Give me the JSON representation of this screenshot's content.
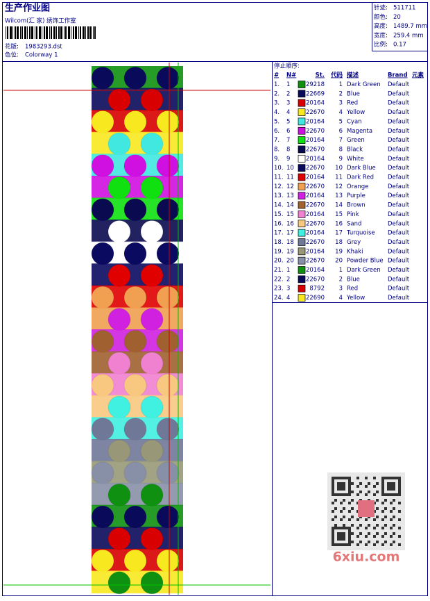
{
  "header": {
    "title": "生产作业图",
    "company": "Wilcom(汇 家) 绣饰工作室",
    "fields": [
      {
        "label": "花版:",
        "value": "1983293.dst"
      },
      {
        "label": "色位:",
        "value": "Colorway 1"
      }
    ]
  },
  "summary": [
    {
      "label": "针迹:",
      "value": "511711"
    },
    {
      "label": "颜色:",
      "value": "20"
    },
    {
      "label": "高度:",
      "value": "1489.7 mm"
    },
    {
      "label": "宽度:",
      "value": "259.4 mm"
    },
    {
      "label": "比例:",
      "value": "0.17"
    }
  ],
  "stop_sequence": {
    "title": "停止顺序:",
    "columns": [
      "#",
      "N#",
      "St.",
      "代码",
      "描述",
      "Brand",
      "元素"
    ],
    "rows": [
      {
        "num": "1.",
        "n": 1,
        "color": "#109010",
        "stitches": 29218,
        "code": 1,
        "desc": "Dark Green",
        "brand": "Default"
      },
      {
        "num": "2.",
        "n": 2,
        "color": "#0a0a5a",
        "stitches": 22669,
        "code": 2,
        "desc": "Blue",
        "brand": "Default"
      },
      {
        "num": "3.",
        "n": 3,
        "color": "#d80000",
        "stitches": 20164,
        "code": 3,
        "desc": "Red",
        "brand": "Default"
      },
      {
        "num": "4.",
        "n": 4,
        "color": "#f8e820",
        "stitches": 22670,
        "code": 4,
        "desc": "Yellow",
        "brand": "Default"
      },
      {
        "num": "5.",
        "n": 5,
        "color": "#40e8e0",
        "stitches": 20164,
        "code": 5,
        "desc": "Cyan",
        "brand": "Default"
      },
      {
        "num": "6.",
        "n": 6,
        "color": "#d010e0",
        "stitches": 22670,
        "code": 6,
        "desc": "Magenta",
        "brand": "Default"
      },
      {
        "num": "7.",
        "n": 7,
        "color": "#10e010",
        "stitches": 20164,
        "code": 7,
        "desc": "Green",
        "brand": "Default"
      },
      {
        "num": "8.",
        "n": 8,
        "color": "#0a0a50",
        "stitches": 22670,
        "code": 8,
        "desc": "Black",
        "brand": "Default"
      },
      {
        "num": "9.",
        "n": 9,
        "color": "#ffffff",
        "stitches": 20164,
        "code": 9,
        "desc": "White",
        "brand": "Default"
      },
      {
        "num": "10.",
        "n": 10,
        "color": "#0a0a60",
        "stitches": 22670,
        "code": 10,
        "desc": "Dark Blue",
        "brand": "Default"
      },
      {
        "num": "11.",
        "n": 11,
        "color": "#e00000",
        "stitches": 20164,
        "code": 11,
        "desc": "Dark Red",
        "brand": "Default"
      },
      {
        "num": "12.",
        "n": 12,
        "color": "#f0a050",
        "stitches": 22670,
        "code": 12,
        "desc": "Orange",
        "brand": "Default"
      },
      {
        "num": "13.",
        "n": 13,
        "color": "#d020e0",
        "stitches": 20164,
        "code": 13,
        "desc": "Purple",
        "brand": "Default"
      },
      {
        "num": "14.",
        "n": 14,
        "color": "#a06030",
        "stitches": 22670,
        "code": 14,
        "desc": "Brown",
        "brand": "Default"
      },
      {
        "num": "15.",
        "n": 15,
        "color": "#f080d0",
        "stitches": 20164,
        "code": 15,
        "desc": "Pink",
        "brand": "Default"
      },
      {
        "num": "16.",
        "n": 16,
        "color": "#f8c880",
        "stitches": 22670,
        "code": 16,
        "desc": "Sand",
        "brand": "Default"
      },
      {
        "num": "17.",
        "n": 17,
        "color": "#40f0e0",
        "stitches": 20164,
        "code": 17,
        "desc": "Turquoise",
        "brand": "Default"
      },
      {
        "num": "18.",
        "n": 18,
        "color": "#707898",
        "stitches": 22670,
        "code": 18,
        "desc": "Grey",
        "brand": "Default"
      },
      {
        "num": "19.",
        "n": 19,
        "color": "#989878",
        "stitches": 20164,
        "code": 19,
        "desc": "Khaki",
        "brand": "Default"
      },
      {
        "num": "20.",
        "n": 20,
        "color": "#8890a8",
        "stitches": 22670,
        "code": 20,
        "desc": "Powder Blue",
        "brand": "Default"
      },
      {
        "num": "21.",
        "n": 1,
        "color": "#109010",
        "stitches": 20164,
        "code": 1,
        "desc": "Dark Green",
        "brand": "Default"
      },
      {
        "num": "22.",
        "n": 2,
        "color": "#0a0a5a",
        "stitches": 22670,
        "code": 2,
        "desc": "Blue",
        "brand": "Default"
      },
      {
        "num": "23.",
        "n": 3,
        "color": "#d80000",
        "stitches": 8792,
        "code": 3,
        "desc": "Red",
        "brand": "Default"
      },
      {
        "num": "24.",
        "n": 4,
        "color": "#f8e820",
        "stitches": 22690,
        "code": 4,
        "desc": "Yellow",
        "brand": "Default"
      }
    ]
  },
  "watermark": "6xiu.com"
}
